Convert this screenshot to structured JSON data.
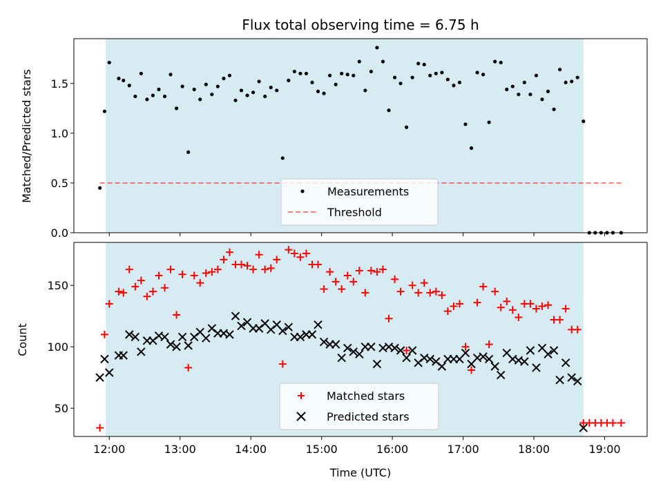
{
  "title": "Flux total observing time = 6.75 h",
  "colors": {
    "shade": "#add8e6",
    "measurement": "#000000",
    "threshold": "#ff0000",
    "matched": "#ff0000",
    "predicted": "#000000"
  },
  "chart_data": [
    {
      "type": "scatter",
      "ylabel": "Matched/Predicted stars",
      "xlabel": "",
      "xlim": [
        "11:30",
        "19:36"
      ],
      "ylim": [
        0,
        1.95
      ],
      "yticks": [
        0.0,
        0.5,
        1.0,
        1.5
      ],
      "ytick_labels": [
        "0.0",
        "0.5",
        "1.0",
        "1.5"
      ],
      "shaded_interval": [
        "11:57",
        "18:42"
      ],
      "legend": {
        "placement": "bottom-center",
        "entries": [
          "Measurements",
          "Threshold"
        ]
      },
      "threshold": {
        "name": "Threshold",
        "value": 0.5,
        "x_range": [
          "11:52",
          "19:14"
        ]
      },
      "series": [
        {
          "name": "Measurements",
          "x": [
            "11:52",
            "11:56",
            "12:00",
            "12:08",
            "12:12",
            "12:17",
            "12:22",
            "12:27",
            "12:32",
            "12:37",
            "12:42",
            "12:47",
            "12:52",
            "12:57",
            "13:02",
            "13:07",
            "13:12",
            "13:17",
            "13:22",
            "13:27",
            "13:32",
            "13:37",
            "13:42",
            "13:47",
            "13:52",
            "13:57",
            "14:02",
            "14:07",
            "14:12",
            "14:17",
            "14:22",
            "14:27",
            "14:32",
            "14:37",
            "14:42",
            "14:47",
            "14:52",
            "14:57",
            "15:02",
            "15:07",
            "15:12",
            "15:17",
            "15:22",
            "15:27",
            "15:32",
            "15:37",
            "15:42",
            "15:47",
            "15:52",
            "15:57",
            "16:02",
            "16:07",
            "16:12",
            "16:17",
            "16:22",
            "16:27",
            "16:32",
            "16:37",
            "16:42",
            "16:47",
            "16:52",
            "16:57",
            "17:02",
            "17:07",
            "17:12",
            "17:17",
            "17:22",
            "17:27",
            "17:32",
            "17:37",
            "17:42",
            "17:47",
            "17:52",
            "17:57",
            "18:02",
            "18:07",
            "18:12",
            "18:17",
            "18:22",
            "18:27",
            "18:32",
            "18:37",
            "18:42",
            "18:47",
            "18:52",
            "18:57",
            "19:02",
            "19:07",
            "19:14"
          ],
          "y": [
            0.45,
            1.22,
            1.71,
            1.55,
            1.53,
            1.48,
            1.37,
            1.6,
            1.34,
            1.38,
            1.44,
            1.37,
            1.59,
            1.25,
            1.47,
            0.81,
            1.44,
            1.34,
            1.49,
            1.39,
            1.47,
            1.55,
            1.58,
            1.33,
            1.43,
            1.38,
            1.41,
            1.52,
            1.37,
            1.46,
            1.43,
            0.75,
            1.53,
            1.62,
            1.6,
            1.6,
            1.51,
            1.42,
            1.4,
            1.58,
            1.49,
            1.6,
            1.59,
            1.58,
            1.72,
            1.43,
            1.62,
            1.86,
            1.72,
            1.23,
            1.56,
            1.5,
            1.06,
            1.56,
            1.7,
            1.69,
            1.58,
            1.6,
            1.61,
            1.54,
            1.48,
            1.51,
            1.09,
            0.85,
            1.61,
            1.59,
            1.11,
            1.72,
            1.71,
            1.44,
            1.47,
            1.39,
            1.51,
            1.39,
            1.58,
            1.34,
            1.42,
            1.24,
            1.64,
            1.51,
            1.52,
            1.56,
            1.12,
            0.0,
            0.0,
            0.0,
            0.0,
            0.0,
            0.0
          ]
        }
      ]
    },
    {
      "type": "scatter",
      "ylabel": "Count",
      "xlabel": "Time (UTC)",
      "xlim": [
        "11:30",
        "19:36"
      ],
      "ylim": [
        27,
        185
      ],
      "yticks": [
        50,
        100,
        150
      ],
      "ytick_labels": [
        "50",
        "100",
        "150"
      ],
      "xticks": [
        "12:00",
        "13:00",
        "14:00",
        "15:00",
        "16:00",
        "17:00",
        "18:00",
        "19:00"
      ],
      "shaded_interval": [
        "11:57",
        "18:42"
      ],
      "legend": {
        "placement": "bottom-center",
        "entries": [
          "Matched stars",
          "Predicted stars"
        ]
      },
      "series": [
        {
          "name": "Matched stars",
          "x": [
            "11:52",
            "11:56",
            "12:00",
            "12:08",
            "12:12",
            "12:17",
            "12:22",
            "12:27",
            "12:32",
            "12:37",
            "12:42",
            "12:47",
            "12:52",
            "12:57",
            "13:02",
            "13:07",
            "13:12",
            "13:17",
            "13:22",
            "13:27",
            "13:32",
            "13:37",
            "13:42",
            "13:47",
            "13:52",
            "13:57",
            "14:02",
            "14:07",
            "14:12",
            "14:17",
            "14:22",
            "14:27",
            "14:32",
            "14:37",
            "14:42",
            "14:47",
            "14:52",
            "14:57",
            "15:02",
            "15:07",
            "15:12",
            "15:17",
            "15:22",
            "15:27",
            "15:32",
            "15:37",
            "15:42",
            "15:47",
            "15:52",
            "15:57",
            "16:02",
            "16:07",
            "16:12",
            "16:17",
            "16:22",
            "16:27",
            "16:32",
            "16:37",
            "16:42",
            "16:47",
            "16:52",
            "16:57",
            "17:02",
            "17:07",
            "17:12",
            "17:17",
            "17:22",
            "17:27",
            "17:32",
            "17:37",
            "17:42",
            "17:47",
            "17:52",
            "17:57",
            "18:02",
            "18:07",
            "18:12",
            "18:17",
            "18:22",
            "18:27",
            "18:32",
            "18:37",
            "18:42",
            "18:47",
            "18:52",
            "18:57",
            "19:02",
            "19:07",
            "19:14"
          ],
          "y": [
            34,
            110,
            135,
            145,
            144,
            163,
            149,
            154,
            141,
            145,
            158,
            148,
            163,
            126,
            159,
            83,
            158,
            152,
            160,
            161,
            163,
            171,
            177,
            167,
            167,
            166,
            163,
            175,
            163,
            164,
            171,
            86,
            179,
            176,
            173,
            176,
            167,
            167,
            147,
            161,
            153,
            147,
            158,
            153,
            162,
            144,
            162,
            161,
            163,
            123,
            155,
            145,
            97,
            150,
            144,
            152,
            144,
            145,
            142,
            129,
            133,
            135,
            100,
            81,
            136,
            149,
            102,
            145,
            132,
            137,
            130,
            124,
            135,
            135,
            131,
            133,
            134,
            122,
            122,
            131,
            114,
            114,
            38,
            38,
            38,
            38,
            38,
            38,
            38
          ]
        },
        {
          "name": "Predicted stars",
          "x": [
            "11:52",
            "11:56",
            "12:00",
            "12:08",
            "12:12",
            "12:17",
            "12:22",
            "12:27",
            "12:32",
            "12:37",
            "12:42",
            "12:47",
            "12:52",
            "12:57",
            "13:02",
            "13:07",
            "13:12",
            "13:17",
            "13:22",
            "13:27",
            "13:32",
            "13:37",
            "13:42",
            "13:47",
            "13:52",
            "13:57",
            "14:02",
            "14:07",
            "14:12",
            "14:17",
            "14:22",
            "14:27",
            "14:32",
            "14:37",
            "14:42",
            "14:47",
            "14:52",
            "14:57",
            "15:02",
            "15:07",
            "15:12",
            "15:17",
            "15:22",
            "15:27",
            "15:32",
            "15:37",
            "15:42",
            "15:47",
            "15:52",
            "15:57",
            "16:02",
            "16:07",
            "16:12",
            "16:17",
            "16:22",
            "16:27",
            "16:32",
            "16:37",
            "16:42",
            "16:47",
            "16:52",
            "16:57",
            "17:02",
            "17:07",
            "17:12",
            "17:17",
            "17:22",
            "17:27",
            "17:32",
            "17:37",
            "17:42",
            "17:47",
            "17:52",
            "17:57",
            "18:02",
            "18:07",
            "18:12",
            "18:17",
            "18:22",
            "18:27",
            "18:32",
            "18:37",
            "18:42"
          ],
          "y": [
            75,
            90,
            79,
            93,
            93,
            110,
            108,
            96,
            105,
            105,
            109,
            108,
            102,
            100,
            108,
            101,
            108,
            112,
            107,
            115,
            111,
            111,
            110,
            125,
            117,
            120,
            115,
            115,
            119,
            114,
            118,
            113,
            116,
            108,
            108,
            110,
            110,
            118,
            104,
            102,
            102,
            91,
            99,
            96,
            94,
            100,
            100,
            86,
            99,
            100,
            99,
            97,
            91,
            97,
            87,
            91,
            90,
            88,
            84,
            90,
            90,
            90,
            95,
            86,
            91,
            92,
            90,
            84,
            77,
            95,
            90,
            89,
            88,
            97,
            83,
            99,
            94,
            97,
            73,
            87,
            75,
            72,
            34
          ]
        }
      ]
    }
  ]
}
